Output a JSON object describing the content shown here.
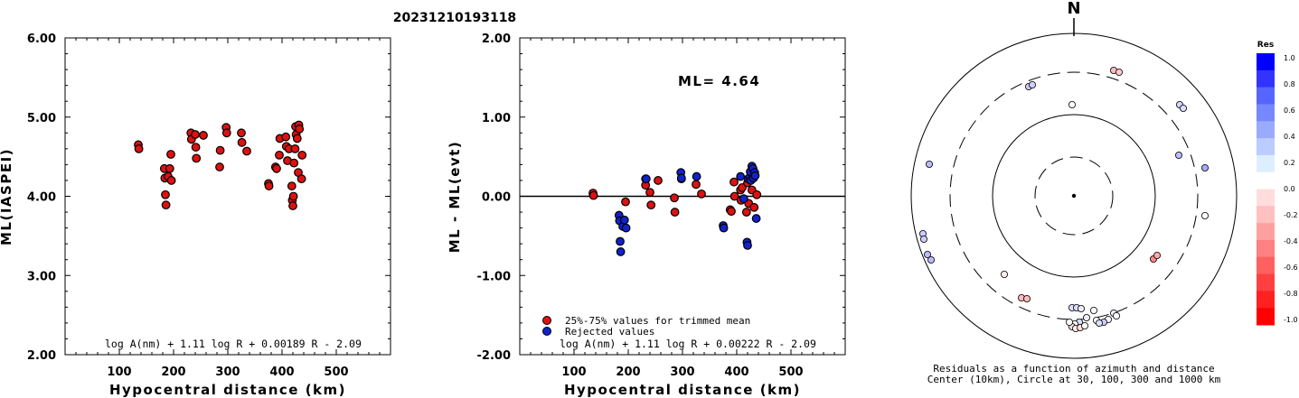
{
  "title": "20231210193118",
  "chart_data": [
    {
      "type": "scatter",
      "ylabel": "ML(IASPEI)",
      "xlabel": "Hypocentral distance (km)",
      "xlim": [
        0,
        600
      ],
      "ylim": [
        2.0,
        6.0
      ],
      "xticks": [
        "100",
        "200",
        "300",
        "400",
        "500"
      ],
      "yticks": [
        "2.00",
        "3.00",
        "4.00",
        "5.00",
        "6.00"
      ],
      "formula": "log A(nm) + 1.11 log R + 0.00189 R - 2.09",
      "color": "#dd1111",
      "points": [
        [
          135,
          4.65
        ],
        [
          136,
          4.6
        ],
        [
          183,
          4.35
        ],
        [
          184,
          4.23
        ],
        [
          185,
          4.02
        ],
        [
          186,
          3.89
        ],
        [
          190,
          4.25
        ],
        [
          193,
          4.35
        ],
        [
          195,
          4.53
        ],
        [
          196,
          4.2
        ],
        [
          232,
          4.8
        ],
        [
          233,
          4.72
        ],
        [
          240,
          4.78
        ],
        [
          241,
          4.62
        ],
        [
          242,
          4.48
        ],
        [
          255,
          4.77
        ],
        [
          285,
          4.37
        ],
        [
          286,
          4.58
        ],
        [
          297,
          4.87
        ],
        [
          298,
          4.8
        ],
        [
          325,
          4.8
        ],
        [
          326,
          4.68
        ],
        [
          335,
          4.57
        ],
        [
          375,
          4.16
        ],
        [
          376,
          4.13
        ],
        [
          388,
          4.37
        ],
        [
          390,
          4.35
        ],
        [
          395,
          4.52
        ],
        [
          396,
          4.73
        ],
        [
          407,
          4.75
        ],
        [
          408,
          4.63
        ],
        [
          410,
          4.45
        ],
        [
          413,
          4.6
        ],
        [
          418,
          4.13
        ],
        [
          419,
          3.95
        ],
        [
          420,
          3.88
        ],
        [
          421,
          4.0
        ],
        [
          422,
          4.42
        ],
        [
          424,
          4.6
        ],
        [
          425,
          4.88
        ],
        [
          426,
          4.78
        ],
        [
          428,
          4.73
        ],
        [
          430,
          4.3
        ],
        [
          431,
          4.9
        ],
        [
          432,
          4.85
        ],
        [
          436,
          4.22
        ],
        [
          437,
          4.52
        ]
      ]
    },
    {
      "type": "scatter",
      "ylabel": "ML - ML(evt)",
      "xlabel": "Hypocentral distance (km)",
      "xlim": [
        0,
        600
      ],
      "ylim": [
        -2.0,
        2.0
      ],
      "xticks": [
        "100",
        "200",
        "300",
        "400",
        "500"
      ],
      "yticks": [
        "-2.00",
        "-1.00",
        "0.00",
        "1.00",
        "2.00"
      ],
      "annotation": "ML= 4.64",
      "formula": "log A(nm) + 1.11 log R + 0.00222 R - 2.09",
      "legend": [
        "25%-75% values for trimmed mean",
        "Rejected values"
      ],
      "colors": {
        "trimmed": "#dd1111",
        "rejected": "#1122cc"
      },
      "series": [
        {
          "name": "25%-75% values for trimmed mean",
          "points": [
            [
              135,
              0.04
            ],
            [
              136,
              0.01
            ],
            [
              195,
              -0.07
            ],
            [
              232,
              0.14
            ],
            [
              240,
              0.05
            ],
            [
              242,
              -0.11
            ],
            [
              255,
              0.2
            ],
            [
              285,
              -0.02
            ],
            [
              286,
              -0.2
            ],
            [
              298,
              0.22
            ],
            [
              325,
              0.15
            ],
            [
              335,
              0.03
            ],
            [
              388,
              -0.17
            ],
            [
              390,
              -0.19
            ],
            [
              395,
              0.18
            ],
            [
              396,
              0.0
            ],
            [
              407,
              0.08
            ],
            [
              408,
              -0.05
            ],
            [
              410,
              0.11
            ],
            [
              418,
              -0.2
            ],
            [
              420,
              0.17
            ],
            [
              422,
              -0.09
            ],
            [
              428,
              0.08
            ],
            [
              432,
              -0.14
            ],
            [
              437,
              0.02
            ]
          ]
        },
        {
          "name": "Rejected values",
          "points": [
            [
              183,
              -0.24
            ],
            [
              184,
              -0.31
            ],
            [
              185,
              -0.57
            ],
            [
              186,
              -0.7
            ],
            [
              190,
              -0.38
            ],
            [
              193,
              -0.3
            ],
            [
              196,
              -0.4
            ],
            [
              232,
              0.22
            ],
            [
              233,
              0.22
            ],
            [
              297,
              0.3
            ],
            [
              298,
              0.23
            ],
            [
              326,
              0.25
            ],
            [
              375,
              -0.37
            ],
            [
              376,
              -0.4
            ],
            [
              407,
              0.25
            ],
            [
              413,
              -0.03
            ],
            [
              419,
              -0.58
            ],
            [
              420,
              -0.62
            ],
            [
              421,
              0.22
            ],
            [
              424,
              0.24
            ],
            [
              425,
              0.31
            ],
            [
              426,
              0.2
            ],
            [
              428,
              0.38
            ],
            [
              430,
              0.35
            ],
            [
              431,
              0.23
            ],
            [
              433,
              0.3
            ],
            [
              434,
              0.26
            ],
            [
              436,
              -0.28
            ]
          ]
        }
      ]
    },
    {
      "type": "polar",
      "north_label": "N",
      "caption_line1": "Residuals as a function of azimuth and distance",
      "caption_line2": "Center (10km), Circle at 30, 100, 300 and 1000 km",
      "colorbar": {
        "title": "Res",
        "labels": [
          "1.0",
          "0.8",
          "0.6",
          "0.4",
          "0.2",
          "0.0",
          "-0.2",
          "-0.4",
          "-0.6",
          "-0.8",
          "-1.0"
        ],
        "colors": [
          "#0000ff",
          "#3333ff",
          "#5566ff",
          "#7788ff",
          "#99aaff",
          "#bbccff",
          "#ddeeff",
          "#ffffff",
          "#ffdddd",
          "#ffc0c0",
          "#ffa0a0",
          "#ff8080",
          "#ff6060",
          "#ff4040",
          "#ff2020",
          "#ff0000"
        ]
      },
      "stations": [
        {
          "dx": -50,
          "dy": -121,
          "c": "#ccccff"
        },
        {
          "dx": -46,
          "dy": -123,
          "c": "#d0d0ff"
        },
        {
          "dx": 44,
          "dy": -139,
          "c": "#ffbbbb"
        },
        {
          "dx": 50,
          "dy": -137,
          "c": "#ffcccc"
        },
        {
          "dx": -2,
          "dy": -101,
          "c": "#ffffff"
        },
        {
          "dx": 117,
          "dy": -101,
          "c": "#d4d4ff"
        },
        {
          "dx": 121,
          "dy": -97,
          "c": "#ddddff"
        },
        {
          "dx": 116,
          "dy": -45,
          "c": "#bbbbff"
        },
        {
          "dx": 145,
          "dy": -31,
          "c": "#aaaaff"
        },
        {
          "dx": -160,
          "dy": -35,
          "c": "#bbbbff"
        },
        {
          "dx": 145,
          "dy": 22,
          "c": "#ffffff"
        },
        {
          "dx": 88,
          "dy": 70,
          "c": "#ff8888"
        },
        {
          "dx": 92,
          "dy": 66,
          "c": "#ffaaaa"
        },
        {
          "dx": -167,
          "dy": 42,
          "c": "#ccccff"
        },
        {
          "dx": -166,
          "dy": 48,
          "c": "#ccccff"
        },
        {
          "dx": -162,
          "dy": 65,
          "c": "#bbbbff"
        },
        {
          "dx": -158,
          "dy": 71,
          "c": "#bbbbff"
        },
        {
          "dx": -77,
          "dy": 87,
          "c": "#ffeeee"
        },
        {
          "dx": -58,
          "dy": 113,
          "c": "#ffbbbb"
        },
        {
          "dx": -52,
          "dy": 114,
          "c": "#ffbbbb"
        },
        {
          "dx": -2,
          "dy": 124,
          "c": "#ddddff"
        },
        {
          "dx": 3,
          "dy": 124,
          "c": "#ddddff"
        },
        {
          "dx": 8,
          "dy": 125,
          "c": "#eeeeff"
        },
        {
          "dx": 22,
          "dy": 127,
          "c": "#ffffff"
        },
        {
          "dx": 44,
          "dy": 130,
          "c": "#eeeeff"
        },
        {
          "dx": 47,
          "dy": 133,
          "c": "#ffffff"
        },
        {
          "dx": 38,
          "dy": 137,
          "c": "#ffffff"
        },
        {
          "dx": 14,
          "dy": 135,
          "c": "#eeeeff"
        },
        {
          "dx": 25,
          "dy": 138,
          "c": "#ffffff"
        },
        {
          "dx": 33,
          "dy": 140,
          "c": "#ccccff"
        },
        {
          "dx": 28,
          "dy": 141,
          "c": "#ddddff"
        },
        {
          "dx": 6,
          "dy": 140,
          "c": "#ddddff"
        },
        {
          "dx": 1,
          "dy": 142,
          "c": "#ffffff"
        },
        {
          "dx": -2,
          "dy": 145,
          "c": "#ffdddd"
        },
        {
          "dx": 2,
          "dy": 147,
          "c": "#ffeeee"
        },
        {
          "dx": 7,
          "dy": 146,
          "c": "#ffdddd"
        },
        {
          "dx": 12,
          "dy": 144,
          "c": "#ffffff"
        },
        {
          "dx": -5,
          "dy": 140,
          "c": "#ffffff"
        }
      ]
    }
  ]
}
